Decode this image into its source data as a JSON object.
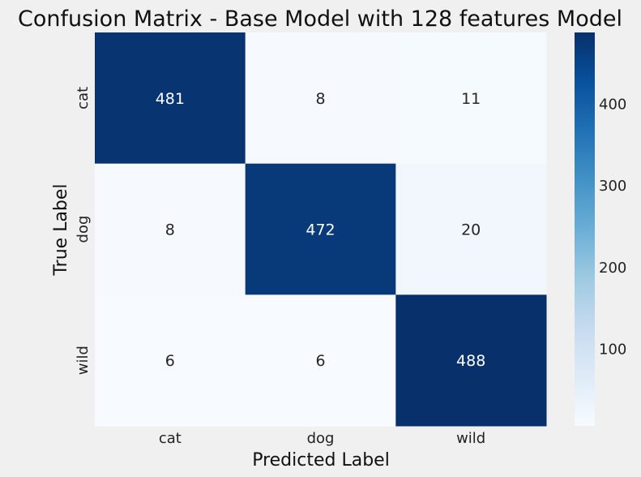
{
  "chart_data": {
    "type": "heatmap",
    "title": "Confusion Matrix - Base Model with 128 features Model",
    "xlabel": "Predicted Label",
    "ylabel": "True Label",
    "x_categories": [
      "cat",
      "dog",
      "wild"
    ],
    "y_categories": [
      "cat",
      "dog",
      "wild"
    ],
    "values": [
      [
        481,
        8,
        11
      ],
      [
        8,
        472,
        20
      ],
      [
        6,
        6,
        488
      ]
    ],
    "colormap": "Blues",
    "color_range": [
      6,
      488
    ],
    "colorbar_ticks": [
      100,
      200,
      300,
      400
    ],
    "grid": false
  }
}
